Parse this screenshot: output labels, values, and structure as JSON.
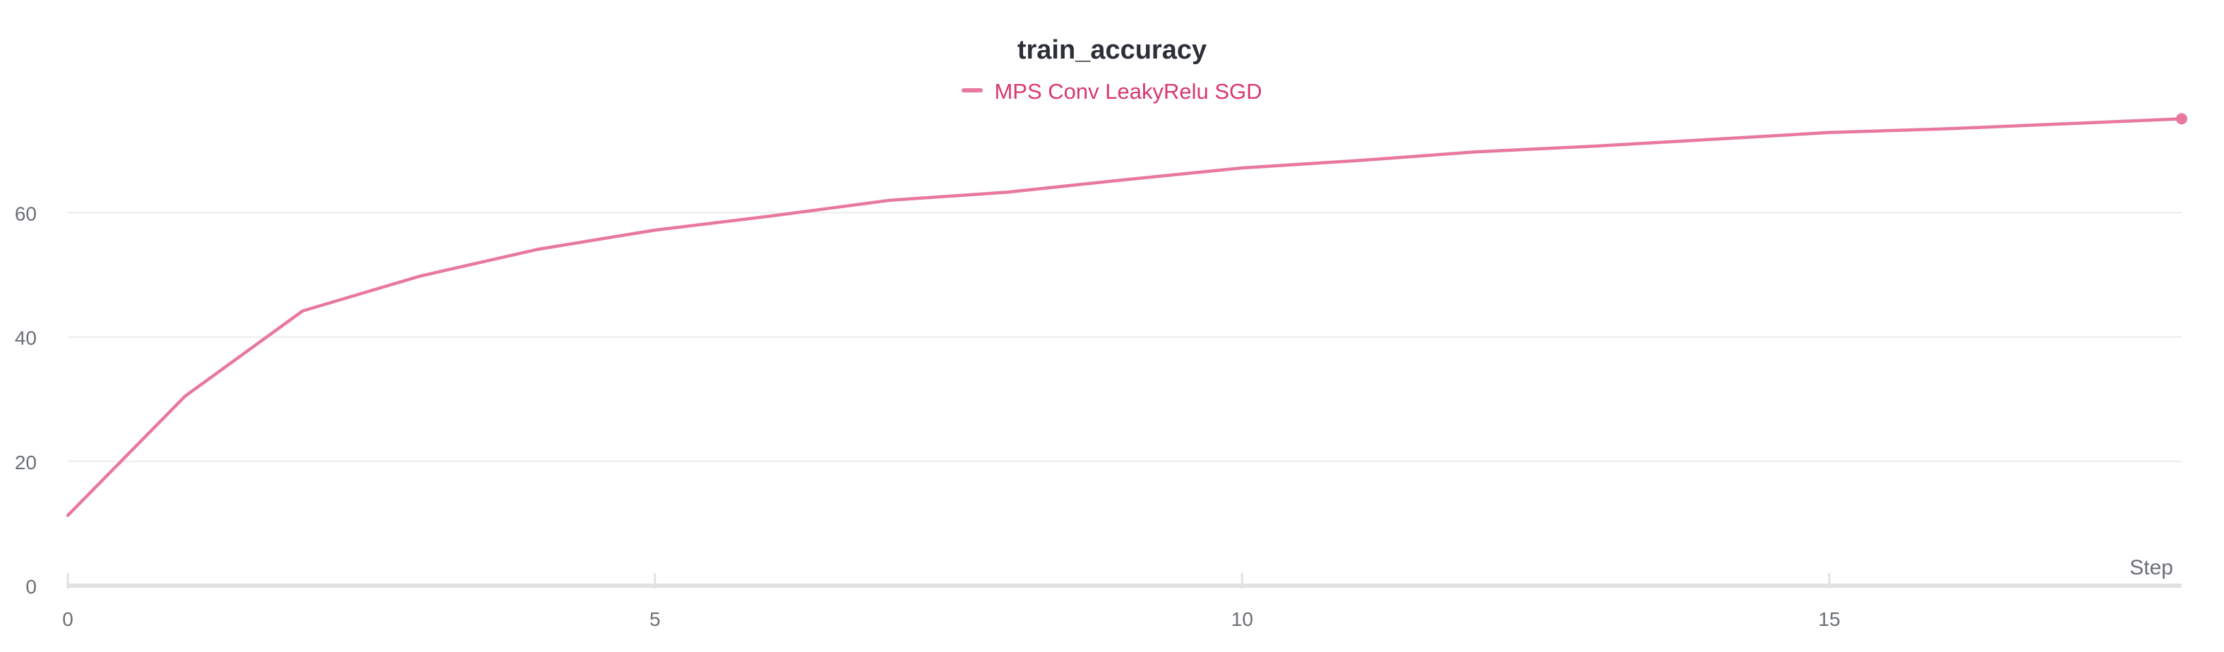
{
  "chart_data": {
    "type": "line",
    "title": "train_accuracy",
    "xlabel": "Step",
    "ylabel": "",
    "xlim": [
      0,
      18
    ],
    "ylim": [
      0,
      75
    ],
    "x_ticks": [
      0,
      5,
      10,
      15
    ],
    "y_ticks": [
      0,
      20,
      40,
      60
    ],
    "grid": true,
    "legend_position": "top-center",
    "series": [
      {
        "name": "MPS Conv LeakyRelu SGD",
        "color": "#e8789f",
        "x": [
          0,
          1,
          2,
          3,
          4,
          5,
          6,
          7,
          8,
          9,
          10,
          11,
          12,
          13,
          14,
          15,
          16,
          17,
          18
        ],
        "y": [
          11.3,
          30.5,
          44.2,
          49.8,
          54.1,
          57.2,
          59.5,
          62.0,
          63.3,
          65.3,
          67.2,
          68.4,
          69.8,
          70.7,
          71.8,
          72.9,
          73.5,
          74.3,
          75.1
        ]
      }
    ]
  }
}
